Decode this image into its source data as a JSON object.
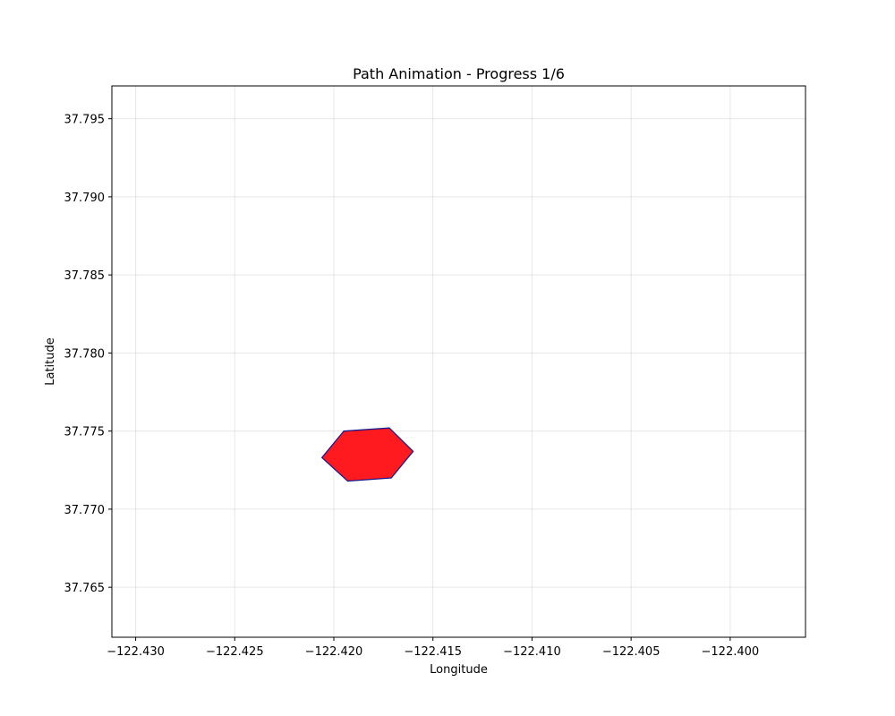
{
  "chart_data": {
    "type": "map-path",
    "title": "Path Animation - Progress 1/6",
    "xlabel": "Longitude",
    "ylabel": "Latitude",
    "xlim": [
      -122.4312,
      -122.3962
    ],
    "ylim": [
      37.7618,
      37.7971
    ],
    "grid": true,
    "x_ticks": [
      -122.43,
      -122.425,
      -122.42,
      -122.415,
      -122.41,
      -122.405,
      -122.4
    ],
    "x_tick_labels": [
      "−122.430",
      "−122.425",
      "−122.420",
      "−122.415",
      "−122.410",
      "−122.405",
      "−122.400"
    ],
    "y_ticks": [
      37.765,
      37.77,
      37.775,
      37.78,
      37.785,
      37.79,
      37.795
    ],
    "y_tick_labels": [
      "37.765",
      "37.770",
      "37.775",
      "37.780",
      "37.785",
      "37.790",
      "37.795"
    ],
    "polygon": {
      "fill_color": "#ff1a1f",
      "edge_color": "#1a1a8c",
      "points": [
        {
          "lon": -122.4206,
          "lat": 37.7733
        },
        {
          "lon": -122.4195,
          "lat": 37.775
        },
        {
          "lon": -122.4172,
          "lat": 37.7752
        },
        {
          "lon": -122.416,
          "lat": 37.7737
        },
        {
          "lon": -122.4171,
          "lat": 37.772
        },
        {
          "lon": -122.4193,
          "lat": 37.7718
        }
      ]
    }
  }
}
